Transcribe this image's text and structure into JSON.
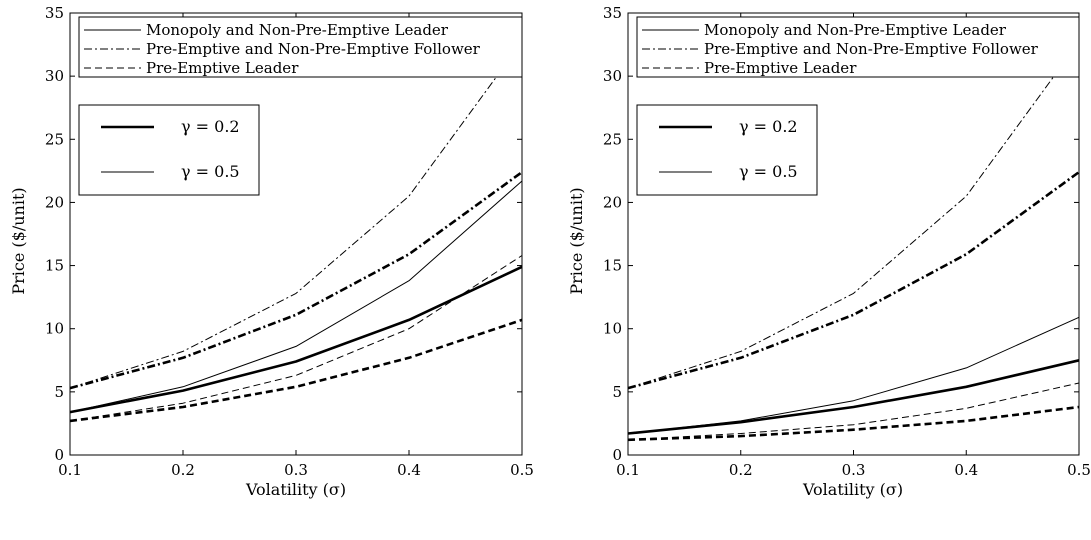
{
  "chart_data": [
    {
      "type": "line",
      "title": "",
      "xlabel": "Volatility (σ)",
      "ylabel": "Price ($/unit)",
      "xlim": [
        0.1,
        0.5
      ],
      "ylim": [
        0,
        35
      ],
      "xticks": [
        "0.1",
        "0.2",
        "0.3",
        "0.4",
        "0.5"
      ],
      "yticks": [
        "0",
        "5",
        "10",
        "15",
        "20",
        "25",
        "30",
        "35"
      ],
      "grid": false,
      "legend_placement": "top",
      "legend": [
        {
          "label": "Monopoly and Non-Pre-Emptive Leader",
          "style": "solid"
        },
        {
          "label": "Pre-Emptive and Non-Pre-Emptive Follower",
          "style": "dashdot"
        },
        {
          "label": "Pre-Emptive Leader",
          "style": "dashed"
        }
      ],
      "gamma_legend": [
        {
          "label": "γ = 0.2",
          "weight": "thick"
        },
        {
          "label": "γ = 0.5",
          "weight": "thin"
        }
      ],
      "x": [
        0.1,
        0.2,
        0.3,
        0.4,
        0.5
      ],
      "series": [
        {
          "style": "solid",
          "weight": "thin",
          "values": [
            3.4,
            5.4,
            8.6,
            13.8,
            21.7
          ]
        },
        {
          "style": "dashdot",
          "weight": "thin",
          "values": [
            5.3,
            8.2,
            12.8,
            20.5,
            32.7
          ]
        },
        {
          "style": "dashed",
          "weight": "thin",
          "values": [
            2.7,
            4.1,
            6.3,
            10.0,
            15.8
          ]
        },
        {
          "style": "solid",
          "weight": "thick",
          "values": [
            3.4,
            5.1,
            7.4,
            10.7,
            14.9
          ]
        },
        {
          "style": "dashdot",
          "weight": "thick",
          "values": [
            5.3,
            7.7,
            11.1,
            15.9,
            22.4
          ]
        },
        {
          "style": "dashed",
          "weight": "thick",
          "values": [
            2.7,
            3.8,
            5.4,
            7.7,
            10.7
          ]
        }
      ]
    },
    {
      "type": "line",
      "title": "",
      "xlabel": "Volatility (σ)",
      "ylabel": "Price ($/unit)",
      "xlim": [
        0.1,
        0.5
      ],
      "ylim": [
        0,
        35
      ],
      "xticks": [
        "0.1",
        "0.2",
        "0.3",
        "0.4",
        "0.5"
      ],
      "yticks": [
        "0",
        "5",
        "10",
        "15",
        "20",
        "25",
        "30",
        "35"
      ],
      "grid": false,
      "legend_placement": "top",
      "legend": [
        {
          "label": "Monopoly and Non-Pre-Emptive Leader",
          "style": "solid"
        },
        {
          "label": "Pre-Emptive and Non-Pre-Emptive Follower",
          "style": "dashdot"
        },
        {
          "label": "Pre-Emptive Leader",
          "style": "dashed"
        }
      ],
      "gamma_legend": [
        {
          "label": "γ = 0.2",
          "weight": "thick"
        },
        {
          "label": "γ = 0.5",
          "weight": "thin"
        }
      ],
      "x": [
        0.1,
        0.2,
        0.3,
        0.4,
        0.5
      ],
      "series": [
        {
          "style": "solid",
          "weight": "thin",
          "values": [
            1.7,
            2.7,
            4.3,
            6.9,
            10.9
          ]
        },
        {
          "style": "dashdot",
          "weight": "thin",
          "values": [
            5.3,
            8.2,
            12.8,
            20.5,
            32.7
          ]
        },
        {
          "style": "dashed",
          "weight": "thin",
          "values": [
            1.2,
            1.7,
            2.4,
            3.7,
            5.7
          ]
        },
        {
          "style": "solid",
          "weight": "thick",
          "values": [
            1.7,
            2.6,
            3.8,
            5.4,
            7.5
          ]
        },
        {
          "style": "dashdot",
          "weight": "thick",
          "values": [
            5.3,
            7.7,
            11.1,
            15.9,
            22.4
          ]
        },
        {
          "style": "dashed",
          "weight": "thick",
          "values": [
            1.2,
            1.5,
            2.0,
            2.7,
            3.8
          ]
        }
      ]
    }
  ]
}
